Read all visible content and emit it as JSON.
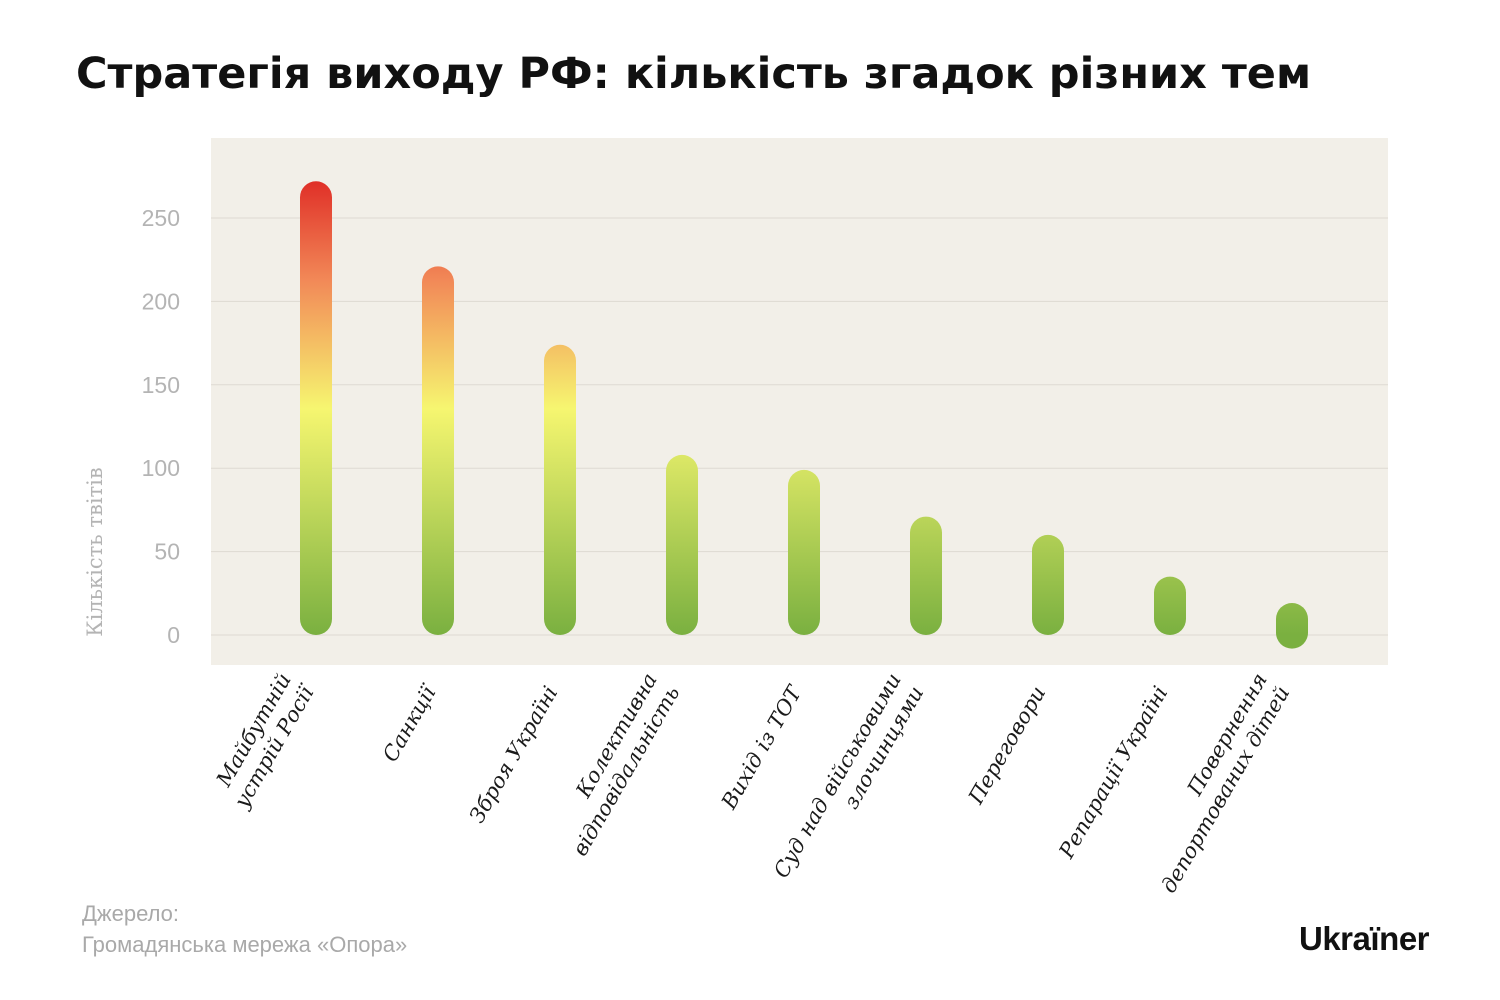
{
  "chart_data": {
    "type": "bar",
    "title": "Стратегія виходу РФ: кількість згадок різних тем",
    "xlabel": "",
    "ylabel": "Кількість твітів",
    "ylim": [
      0,
      270
    ],
    "yticks": [
      0,
      50,
      100,
      150,
      200,
      250
    ],
    "grid": true,
    "categories": [
      [
        "Майбутній",
        "устрій Росії"
      ],
      [
        "Санкції"
      ],
      [
        "Зброя Україні"
      ],
      [
        "Колективна",
        "відповідальність"
      ],
      [
        "Вихід із ТОТ"
      ],
      [
        "Суд над військовими",
        "злочинцями"
      ],
      [
        "Переговори"
      ],
      [
        "Репарації Україні"
      ],
      [
        "Повернення",
        "депортованих дітей"
      ]
    ],
    "values": [
      272,
      221,
      174,
      108,
      99,
      71,
      60,
      35,
      11
    ],
    "colors": {
      "plot_background": "#f2efe8",
      "gridline": "#dedad2",
      "tick_label": "#b4b4b4",
      "gradient_red": "#e03028",
      "gradient_orange": "#f28a58",
      "gradient_yellow": "#f6f670",
      "gradient_green": "#7ab040"
    }
  },
  "source": {
    "label": "Джерело:",
    "text": "Громадянська мережа «Опора»"
  },
  "brand": {
    "logo": "Ukraїner"
  }
}
